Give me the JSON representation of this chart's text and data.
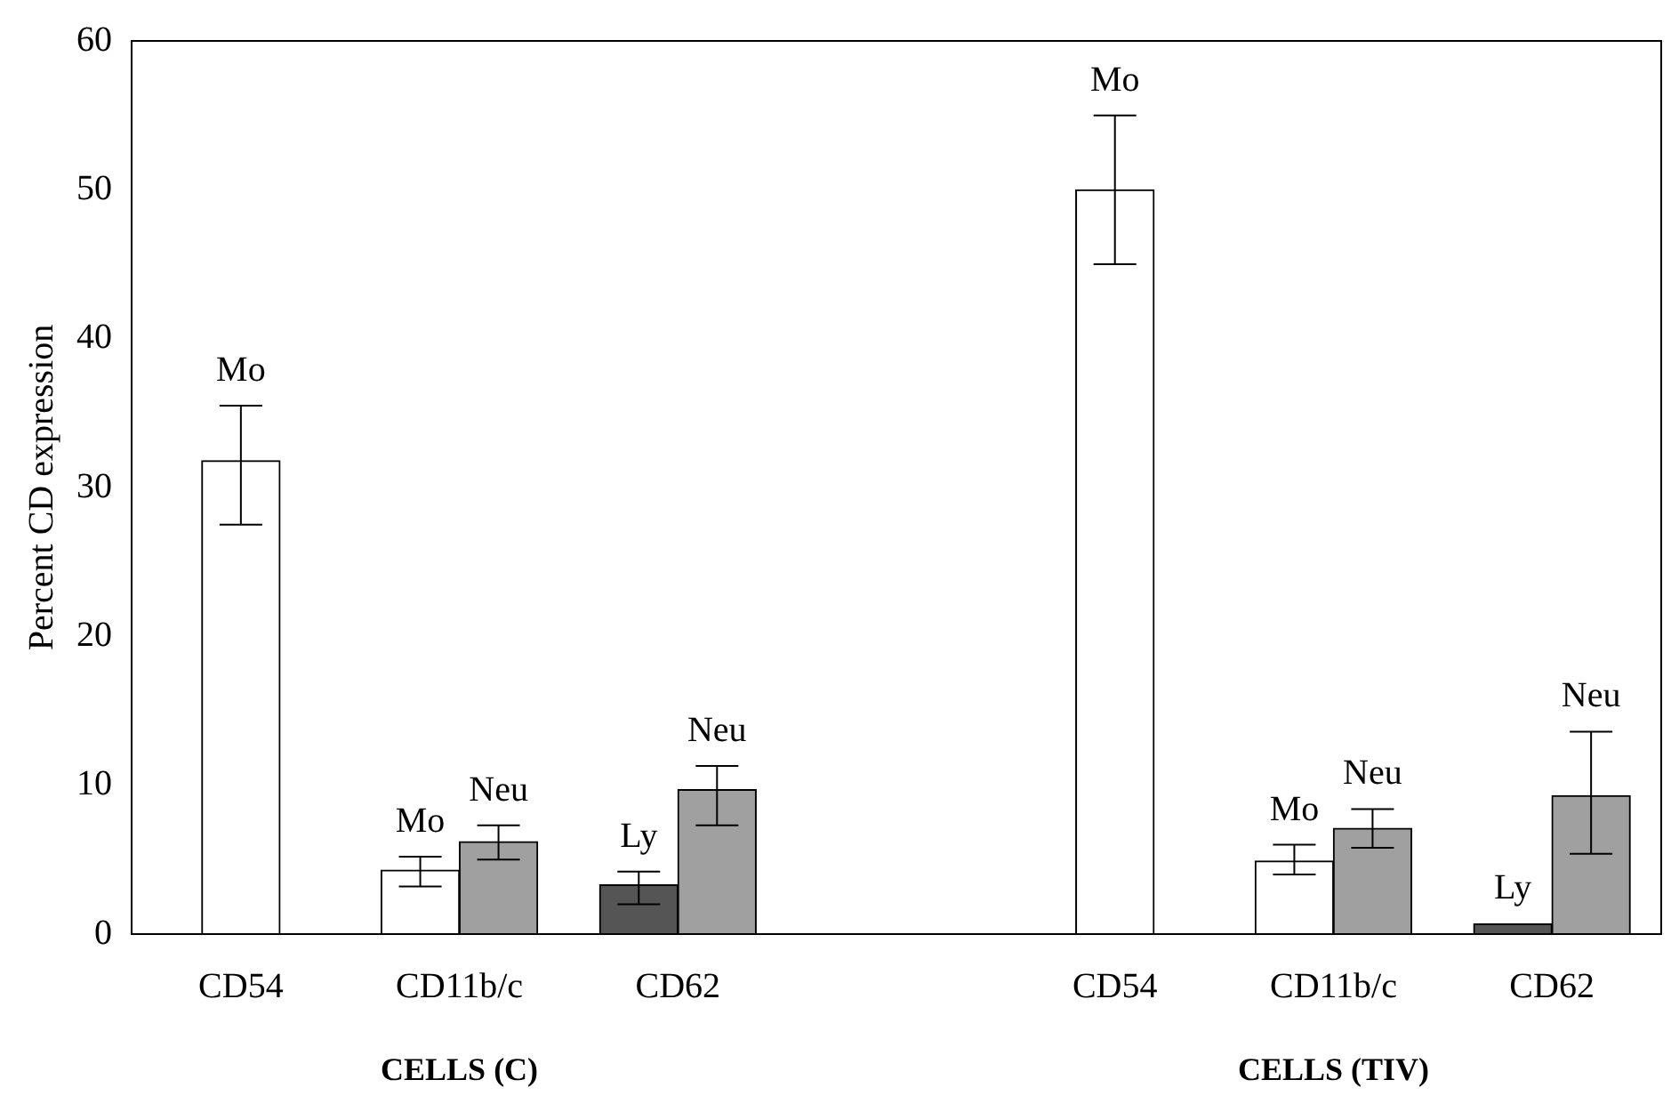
{
  "chart_data": {
    "type": "bar",
    "ylabel": "Percent CD expression",
    "categories": [
      "CD54",
      "CD11b/c",
      "CD62",
      null,
      "CD54",
      "CD11b/c",
      "CD62"
    ],
    "series": [
      {
        "name": "Mo",
        "color": "#ffffff",
        "values": [
          31.8,
          4.3,
          null,
          null,
          50,
          4.9,
          null
        ],
        "errors": [
          [
            27.5,
            35.5
          ],
          [
            3.2,
            5.2
          ],
          null,
          null,
          [
            45,
            55
          ],
          [
            4,
            6
          ],
          null
        ]
      },
      {
        "name": "Ly",
        "color": "#555555",
        "values": [
          null,
          null,
          3.3,
          null,
          null,
          null,
          0.7
        ],
        "errors": [
          null,
          null,
          [
            2,
            4.2
          ],
          null,
          null,
          null,
          null
        ]
      },
      {
        "name": "Neu",
        "color": "#a0a0a0",
        "values": [
          null,
          6.2,
          9.7,
          null,
          null,
          7.1,
          9.3
        ],
        "errors": [
          null,
          [
            5,
            7.3
          ],
          [
            7.3,
            11.3
          ],
          null,
          null,
          [
            5.8,
            8.4
          ],
          [
            5.4,
            13.6
          ]
        ]
      }
    ],
    "ylim": [
      0,
      60
    ],
    "yticks": [
      0,
      10,
      20,
      30,
      40,
      50,
      60
    ],
    "grid": false,
    "legend": false,
    "annotations": [
      "CELLS (C)",
      "CELLS (TIV)"
    ]
  }
}
